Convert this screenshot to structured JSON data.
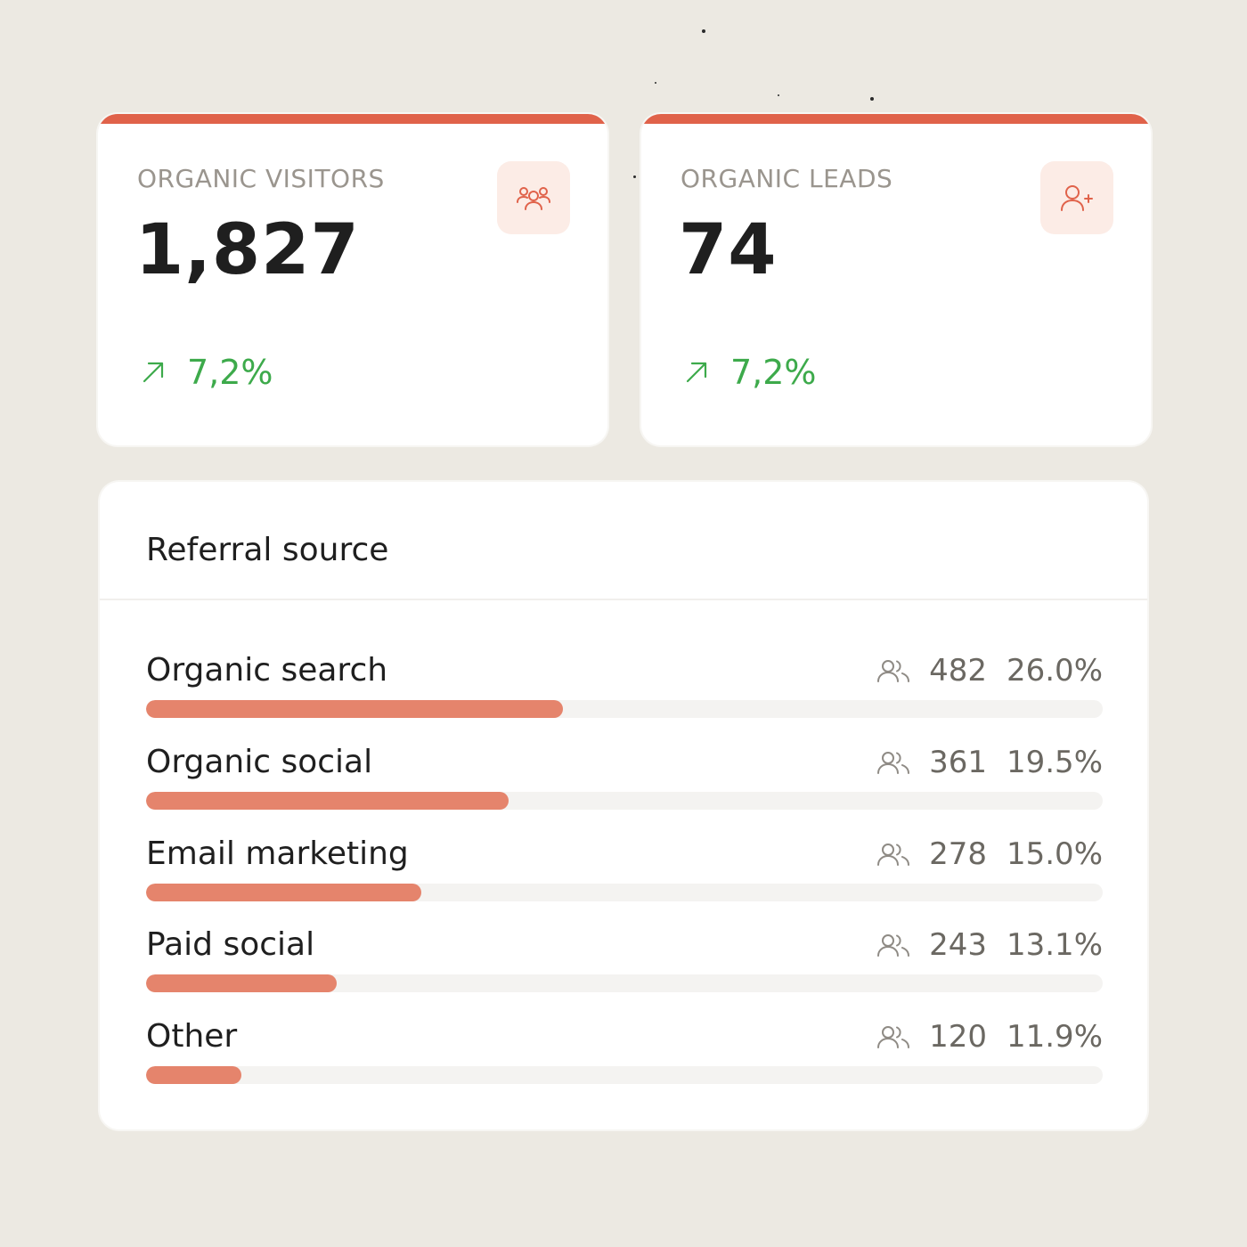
{
  "colors": {
    "background": "#ECE9E2",
    "accent": "#E0624A",
    "bar_fill": "#E5846C",
    "positive": "#3DAA4B"
  },
  "kpis": [
    {
      "label": "ORGANIC VISITORS",
      "value": "1,827",
      "trend": "7,2%",
      "icon": "users-group-icon"
    },
    {
      "label": "ORGANIC LEADS",
      "value": "74",
      "trend": "7,2%",
      "icon": "user-plus-icon"
    }
  ],
  "referral": {
    "title": "Referral source",
    "sources": [
      {
        "name": "Organic search",
        "count": "482",
        "share": "26.0%",
        "bar_fraction": 0.436
      },
      {
        "name": "Organic social",
        "count": "361",
        "share": "19.5%",
        "bar_fraction": 0.379
      },
      {
        "name": "Email marketing",
        "count": "278",
        "share": "15.0%",
        "bar_fraction": 0.288
      },
      {
        "name": "Paid social",
        "count": "243",
        "share": "13.1%",
        "bar_fraction": 0.199
      },
      {
        "name": "Other",
        "count": "120",
        "share": "11.9%",
        "bar_fraction": 0.1
      }
    ]
  }
}
